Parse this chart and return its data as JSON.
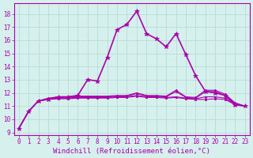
{
  "xlabel": "Windchill (Refroidissement éolien,°C)",
  "xlim": [
    -0.5,
    23.5
  ],
  "ylim": [
    8.8,
    18.8
  ],
  "yticks": [
    9,
    10,
    11,
    12,
    13,
    14,
    15,
    16,
    17,
    18
  ],
  "xticks": [
    0,
    1,
    2,
    3,
    4,
    5,
    6,
    7,
    8,
    9,
    10,
    11,
    12,
    13,
    14,
    15,
    16,
    17,
    18,
    19,
    20,
    21,
    22,
    23
  ],
  "bg_color": "#d6f0ee",
  "grid_color": "#b0d8d0",
  "line_color": "#aa00aa",
  "lines": [
    {
      "x": [
        0,
        1,
        2,
        3,
        4,
        5,
        6,
        7,
        8,
        9,
        10,
        11,
        12,
        13,
        14,
        15,
        16,
        17,
        18,
        19,
        20,
        21,
        22,
        23
      ],
      "y": [
        9.3,
        10.6,
        11.4,
        11.5,
        11.7,
        11.7,
        11.8,
        13.0,
        12.9,
        14.7,
        16.8,
        17.2,
        18.2,
        16.5,
        16.1,
        15.5,
        16.5,
        14.9,
        13.3,
        12.1,
        12.0,
        11.8,
        11.1,
        11.0
      ],
      "marker_size": 4,
      "linewidth": 1.2
    },
    {
      "x": [
        0,
        1,
        2,
        3,
        4,
        5,
        6,
        7,
        8,
        9,
        10,
        11,
        12,
        13,
        14,
        15,
        16,
        17,
        18,
        19,
        20,
        21,
        22,
        23
      ],
      "y": [
        9.3,
        10.6,
        11.4,
        11.5,
        11.55,
        11.55,
        11.6,
        11.6,
        11.6,
        11.6,
        11.65,
        11.65,
        11.75,
        11.65,
        11.65,
        11.6,
        11.65,
        11.55,
        11.5,
        11.5,
        11.55,
        11.5,
        11.1,
        11.0
      ],
      "marker_size": 2,
      "linewidth": 0.8
    },
    {
      "x": [
        0,
        1,
        2,
        3,
        4,
        5,
        6,
        7,
        8,
        9,
        10,
        11,
        12,
        13,
        14,
        15,
        16,
        17,
        18,
        19,
        20,
        21,
        22,
        23
      ],
      "y": [
        9.3,
        10.6,
        11.4,
        11.5,
        11.6,
        11.6,
        11.65,
        11.65,
        11.65,
        11.65,
        11.7,
        11.7,
        11.8,
        11.7,
        11.7,
        11.65,
        11.7,
        11.6,
        11.55,
        11.7,
        11.7,
        11.6,
        11.15,
        11.0
      ],
      "marker_size": 2,
      "linewidth": 0.8
    },
    {
      "x": [
        0,
        1,
        2,
        3,
        4,
        5,
        6,
        7,
        8,
        9,
        10,
        11,
        12,
        13,
        14,
        15,
        16,
        17,
        18,
        19,
        20,
        21,
        22,
        23
      ],
      "y": [
        9.3,
        10.6,
        11.4,
        11.55,
        11.65,
        11.65,
        11.7,
        11.7,
        11.7,
        11.7,
        11.75,
        11.75,
        11.95,
        11.75,
        11.75,
        11.7,
        12.1,
        11.65,
        11.6,
        12.1,
        12.1,
        11.8,
        11.2,
        11.0
      ],
      "marker_size": 2,
      "linewidth": 0.8
    },
    {
      "x": [
        0,
        1,
        2,
        3,
        4,
        5,
        6,
        7,
        8,
        9,
        10,
        11,
        12,
        13,
        14,
        15,
        16,
        17,
        18,
        19,
        20,
        21,
        22,
        23
      ],
      "y": [
        9.3,
        10.6,
        11.4,
        11.6,
        11.7,
        11.7,
        11.75,
        11.75,
        11.75,
        11.75,
        11.8,
        11.8,
        12.0,
        11.8,
        11.8,
        11.75,
        12.2,
        11.7,
        11.65,
        12.2,
        12.2,
        11.9,
        11.25,
        11.0
      ],
      "marker_size": 2,
      "linewidth": 0.8
    }
  ],
  "marker": "*",
  "tick_fontsize": 5.5,
  "xlabel_fontsize": 6.5,
  "figsize": [
    3.2,
    2.0
  ],
  "dpi": 100
}
